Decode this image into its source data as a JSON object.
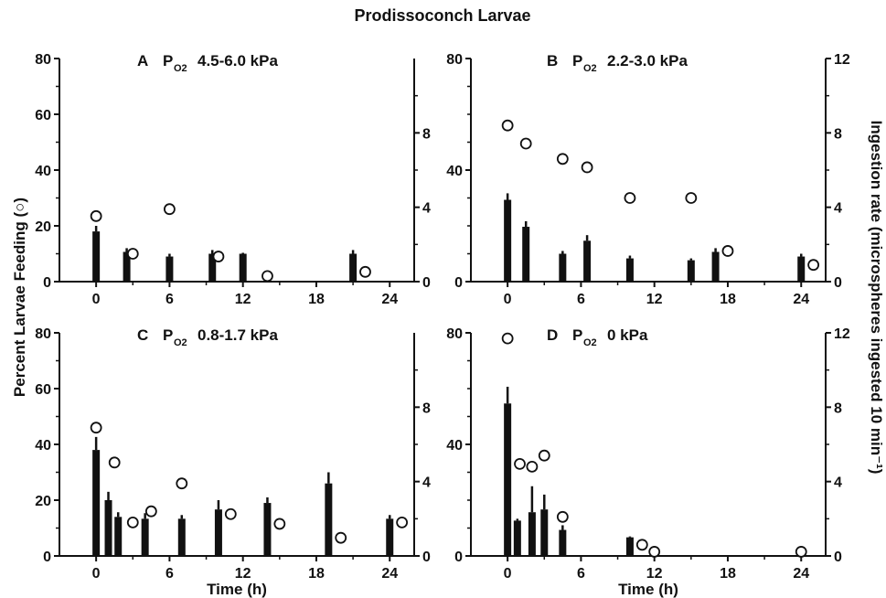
{
  "figure_title": "Prodissoconch Larvae",
  "y_left_label": "Percent Larvae Feeding (○)",
  "y_right_label": "Ingestion rate (microspheres ingested 10 min⁻¹)",
  "x_label": "Time  (h)",
  "chart_data": [
    {
      "type": "bar",
      "panel": "A",
      "title": "A  P_O2  4.5-6.0 kPa",
      "letter": "A",
      "condition": "4.5-6.0 kPa",
      "xlabel": "",
      "xlim": [
        -3,
        26
      ],
      "xticks": [
        0,
        6,
        12,
        18,
        24
      ],
      "ylim_left": [
        0,
        80
      ],
      "yticks_left": [
        0,
        20,
        40,
        60,
        80
      ],
      "ylim_right": [
        0,
        12
      ],
      "yticks_right": [
        0,
        4,
        8
      ],
      "percent_feeding": {
        "x": [
          0,
          3,
          6,
          10,
          14,
          22
        ],
        "y": [
          23.5,
          10,
          26,
          9,
          2,
          3.5
        ]
      },
      "ingestion_rate": {
        "x": [
          0,
          2.5,
          6,
          9.5,
          12,
          21
        ],
        "y": [
          2.7,
          1.6,
          1.35,
          1.5,
          1.5,
          1.5
        ],
        "err": [
          0.3,
          0.2,
          0.15,
          0.2,
          0.05,
          0.2
        ]
      }
    },
    {
      "type": "bar",
      "panel": "B",
      "title": "B  P_O2  2.2-3.0 kPa",
      "letter": "B",
      "condition": "2.2-3.0 kPa",
      "xlabel": "",
      "xlim": [
        -3,
        26
      ],
      "xticks": [
        0,
        6,
        12,
        18,
        24
      ],
      "ylim_left": [
        0,
        80
      ],
      "yticks_left": [
        0,
        40,
        80
      ],
      "ylim_right": [
        0,
        12
      ],
      "yticks_right": [
        0,
        4,
        8,
        12
      ],
      "percent_feeding": {
        "x": [
          0,
          1.5,
          4.5,
          6.5,
          10,
          15,
          18,
          25
        ],
        "y": [
          56,
          49.5,
          44,
          41,
          30,
          30,
          11,
          6
        ]
      },
      "ingestion_rate": {
        "x": [
          0,
          1.5,
          4.5,
          6.5,
          10,
          15,
          17,
          24
        ],
        "y": [
          4.4,
          2.95,
          1.5,
          2.2,
          1.25,
          1.15,
          1.6,
          1.35
        ],
        "err": [
          0.35,
          0.3,
          0.15,
          0.3,
          0.15,
          0.1,
          0.2,
          0.15
        ]
      }
    },
    {
      "type": "bar",
      "panel": "C",
      "title": "C  P_O2  0.8-1.7 kPa",
      "letter": "C",
      "condition": "0.8-1.7 kPa",
      "xlabel": "Time  (h)",
      "xlim": [
        -3,
        26
      ],
      "xticks": [
        0,
        6,
        12,
        18,
        24
      ],
      "ylim_left": [
        0,
        80
      ],
      "yticks_left": [
        0,
        20,
        40,
        60,
        80
      ],
      "ylim_right": [
        0,
        12
      ],
      "yticks_right": [
        0,
        4,
        8
      ],
      "percent_feeding": {
        "x": [
          0,
          1.5,
          3,
          4.5,
          7,
          11,
          15,
          20,
          25
        ],
        "y": [
          46,
          33.5,
          12,
          16,
          26,
          15,
          11.5,
          6.5,
          12
        ]
      },
      "ingestion_rate": {
        "x": [
          0,
          1,
          1.8,
          4,
          7,
          10,
          14,
          19,
          24
        ],
        "y": [
          5.7,
          3.0,
          2.1,
          2.0,
          2.0,
          2.5,
          2.85,
          3.9,
          2.0
        ],
        "err": [
          0.7,
          0.45,
          0.25,
          0.3,
          0.2,
          0.5,
          0.3,
          0.6,
          0.2
        ]
      }
    },
    {
      "type": "bar",
      "panel": "D",
      "title": "D  P_O2  0 kPa",
      "letter": "D",
      "condition": "0 kPa",
      "xlabel": "Time  (h)",
      "xlim": [
        -3,
        26
      ],
      "xticks": [
        0,
        6,
        12,
        18,
        24
      ],
      "ylim_left": [
        0,
        80
      ],
      "yticks_left": [
        0,
        40,
        80
      ],
      "ylim_right": [
        0,
        12
      ],
      "yticks_right": [
        0,
        4,
        8,
        12
      ],
      "percent_feeding": {
        "x": [
          0,
          1,
          2,
          3,
          4.5,
          11,
          12,
          24
        ],
        "y": [
          78,
          33,
          32,
          36,
          14,
          4,
          1.5,
          1.5
        ]
      },
      "ingestion_rate": {
        "x": [
          0,
          0.8,
          2,
          3,
          4.5,
          10
        ],
        "y": [
          8.2,
          1.9,
          2.35,
          2.5,
          1.4,
          1.0
        ],
        "err": [
          0.9,
          0.1,
          1.4,
          0.8,
          0.25,
          0.05
        ]
      }
    }
  ]
}
